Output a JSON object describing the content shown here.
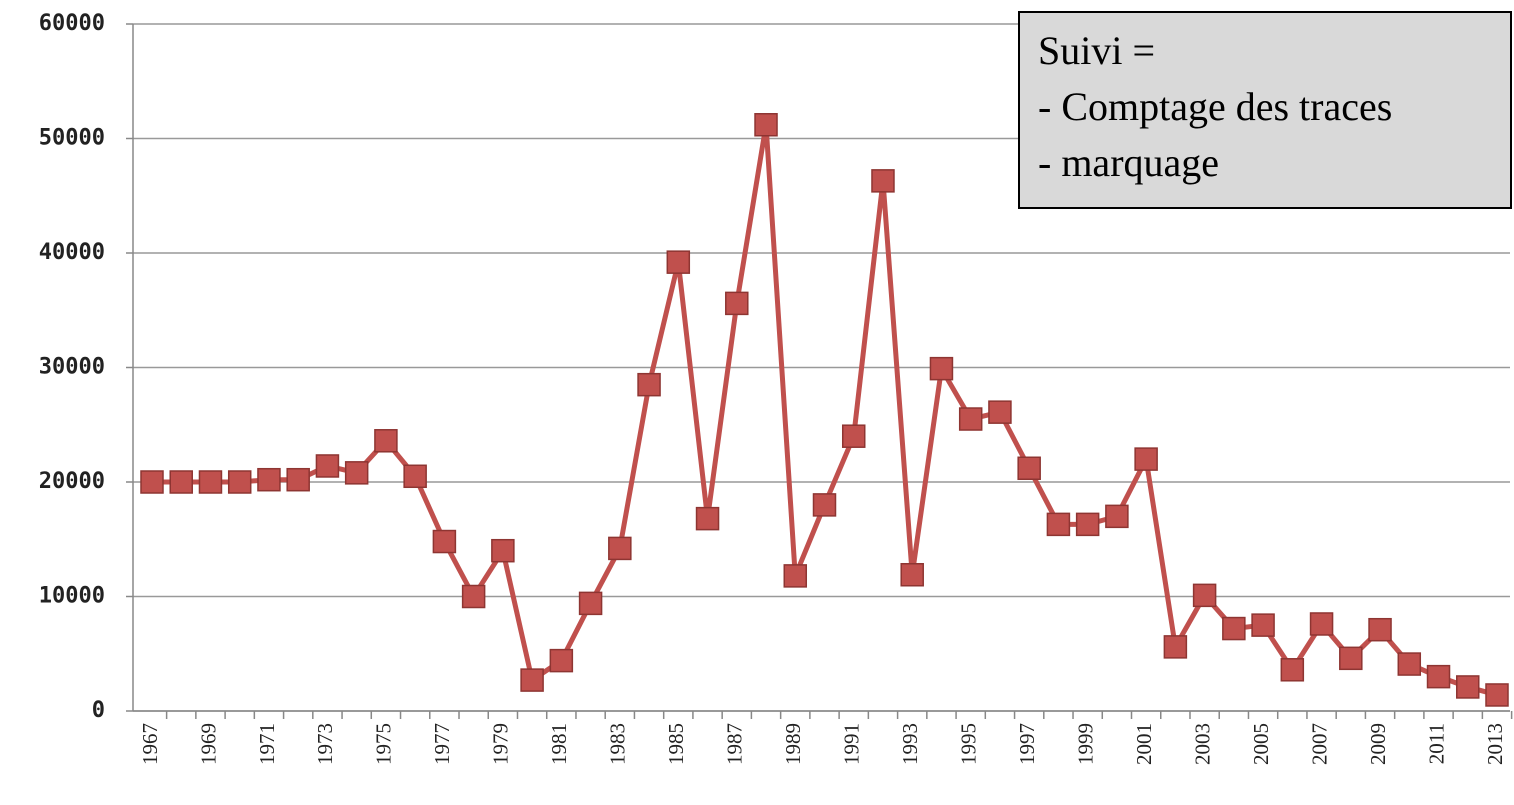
{
  "chart_data": {
    "type": "line",
    "categories": [
      "1967",
      null,
      "1969",
      null,
      "1971",
      null,
      "1973",
      null,
      "1975",
      null,
      "1977",
      null,
      "1979",
      null,
      "1981",
      null,
      "1983",
      null,
      "1985",
      null,
      "1987",
      null,
      "1989",
      null,
      "1991",
      null,
      "1993",
      null,
      "1995",
      null,
      "1997",
      null,
      "1999",
      null,
      "2001",
      null,
      "2003",
      null,
      "2005",
      null,
      "2007",
      null,
      "2009",
      null,
      "2011",
      null,
      "2013"
    ],
    "values": [
      20000,
      20000,
      20000,
      20000,
      20200,
      20200,
      21400,
      20800,
      23600,
      20500,
      14800,
      10000,
      14000,
      2700,
      4400,
      9400,
      14200,
      28500,
      39200,
      16800,
      35600,
      51200,
      11800,
      18000,
      24000,
      46300,
      11900,
      29900,
      25500,
      26100,
      21200,
      16300,
      16300,
      17000,
      22000,
      5600,
      10100,
      7200,
      7500,
      3600,
      7600,
      4600,
      7100,
      4100,
      3000,
      2100,
      1400
    ],
    "color": "#c0504d",
    "ylim": [
      0,
      60000
    ],
    "yticks": [
      0,
      10000,
      20000,
      30000,
      40000,
      50000,
      60000
    ],
    "grid": true,
    "annotation": [
      "Suivi =",
      "- Comptage des traces",
      "- marquage"
    ]
  }
}
